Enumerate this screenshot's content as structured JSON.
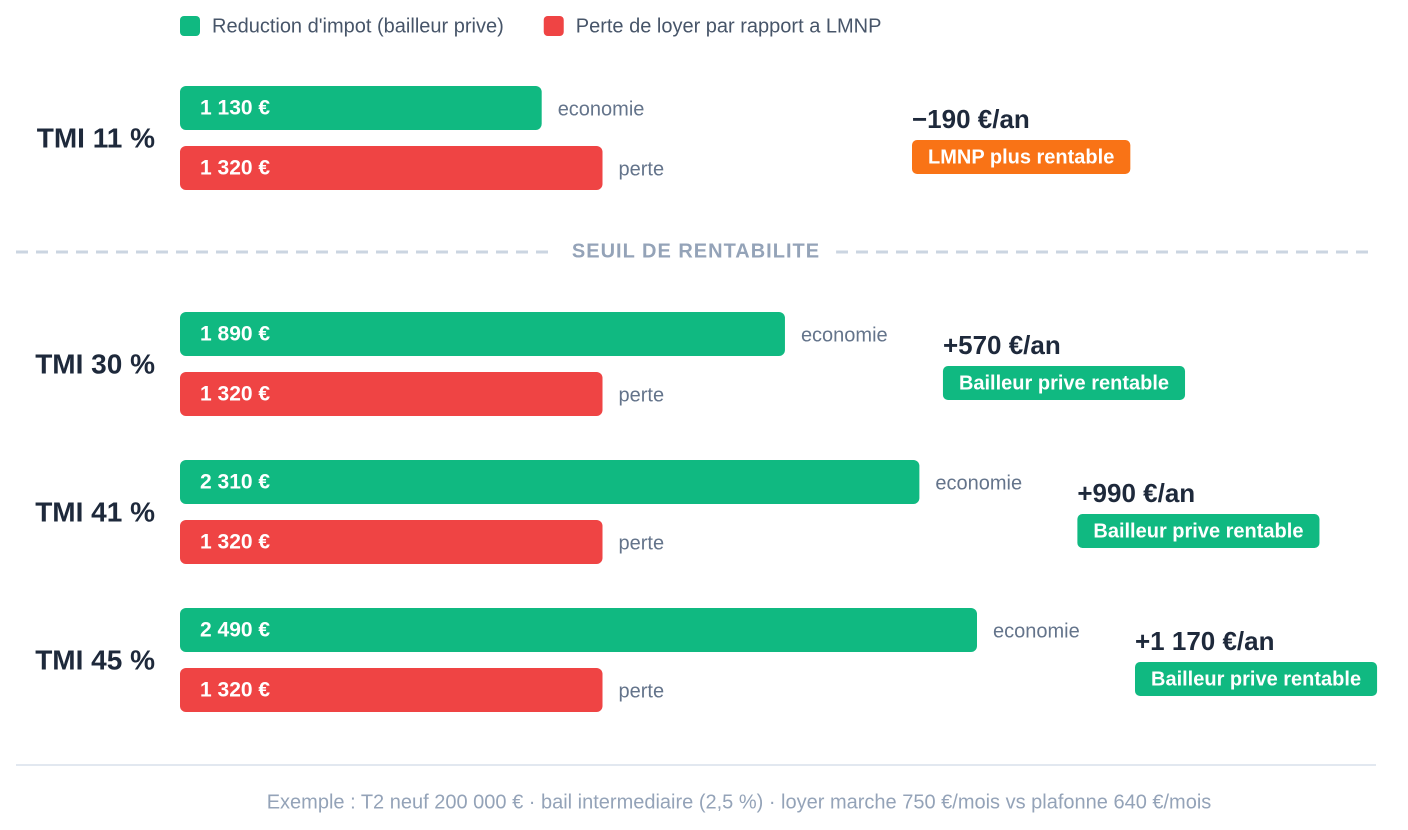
{
  "chart_data": {
    "type": "bar",
    "categories": [
      "TMI 11 %",
      "TMI 30 %",
      "TMI 41 %",
      "TMI 45 %"
    ],
    "series": [
      {
        "name": "Reduction d'impot (bailleur prive)",
        "color": "#10b981",
        "note": "economie",
        "values": [
          1130,
          1890,
          2310,
          2490
        ],
        "value_labels": [
          "1 130 €",
          "1 890 €",
          "2 310 €",
          "2 490 €"
        ]
      },
      {
        "name": "Perte de loyer par rapport a LMNP",
        "color": "#ef4444",
        "note": "perte",
        "values": [
          1320,
          1320,
          1320,
          1320
        ],
        "value_labels": [
          "1 320 €",
          "1 320 €",
          "1 320 €",
          "1 320 €"
        ]
      }
    ],
    "net": {
      "values": [
        -190,
        570,
        990,
        1170
      ],
      "value_labels": [
        "−190 €/an",
        "+570 €/an",
        "+990 €/an",
        "+1 170 €/an"
      ],
      "verdicts": [
        "LMNP plus rentable",
        "Bailleur prive rentable",
        "Bailleur prive rentable",
        "Bailleur prive rentable"
      ],
      "positive_color": "#10b981",
      "negative_color": "#f97316"
    },
    "threshold_label": "SEUIL DE RENTABILITE",
    "footnote": "Exemple : T2 neuf 200 000 € · bail intermediaire (2,5 %) · loyer marche 750 €/mois vs plafonne 640 €/mois"
  }
}
